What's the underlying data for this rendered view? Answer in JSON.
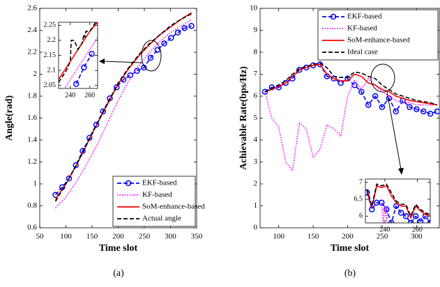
{
  "chart_data": [
    {
      "type": "line",
      "xlabel": "Time slot",
      "ylabel": "Angle(rad)",
      "caption": "(a)",
      "xlim": [
        50,
        350
      ],
      "xticks": [
        50,
        100,
        150,
        200,
        250,
        300,
        350
      ],
      "ylim": [
        0.6,
        2.6
      ],
      "yticks": [
        0.6,
        0.8,
        1,
        1.2,
        1.4,
        1.6,
        1.8,
        2,
        2.2,
        2.4,
        2.6
      ],
      "legend": "lower right",
      "series": [
        {
          "name": "EKF-based",
          "color": "#0000ff",
          "dash": "dashed",
          "marker": "o",
          "x": [
            80,
            93,
            106,
            119,
            132,
            145,
            158,
            171,
            184,
            197,
            210,
            223,
            236,
            249,
            262,
            275,
            288,
            301,
            314,
            327,
            340
          ],
          "values": [
            0.9,
            0.97,
            1.05,
            1.17,
            1.3,
            1.42,
            1.54,
            1.66,
            1.78,
            1.88,
            1.95,
            1.99,
            2.03,
            2.06,
            2.15,
            2.22,
            2.28,
            2.33,
            2.38,
            2.42,
            2.44
          ]
        },
        {
          "name": "KF-based",
          "color": "#ff00ff",
          "dash": "dotted",
          "x": [
            80,
            100,
            120,
            140,
            160,
            180,
            200,
            220,
            240,
            260,
            280,
            300,
            320,
            340
          ],
          "values": [
            0.78,
            0.88,
            1.02,
            1.18,
            1.36,
            1.56,
            1.76,
            1.94,
            2.08,
            2.2,
            2.3,
            2.38,
            2.44,
            2.5
          ]
        },
        {
          "name": "SoM-enhance-based",
          "color": "#ff0000",
          "dash": "solid",
          "x": [
            80,
            100,
            120,
            140,
            160,
            180,
            200,
            220,
            240,
            260,
            280,
            300,
            320,
            340
          ],
          "values": [
            0.86,
            1.0,
            1.17,
            1.36,
            1.55,
            1.73,
            1.91,
            2.05,
            2.17,
            2.27,
            2.36,
            2.43,
            2.5,
            2.56
          ]
        },
        {
          "name": "Actual angle",
          "color": "#000000",
          "dash": "dashed",
          "x": [
            80,
            100,
            120,
            140,
            160,
            180,
            200,
            220,
            240,
            260,
            280,
            300,
            320,
            340
          ],
          "values": [
            0.84,
            1.0,
            1.17,
            1.36,
            1.55,
            1.74,
            1.92,
            2.06,
            2.18,
            2.28,
            2.36,
            2.44,
            2.5,
            2.55
          ]
        }
      ]
    },
    {
      "type": "line",
      "xlim": [
        228,
        268
      ],
      "xticks": [
        240,
        260
      ],
      "ylim": [
        2.04,
        2.26
      ],
      "yticks": [
        2.05,
        2.1,
        2.15,
        2.2,
        2.25
      ],
      "series": [
        {
          "color": "#0000ff",
          "dash": "dashed",
          "marker": "o",
          "x": [
            246,
            254,
            262
          ],
          "values": [
            2.055,
            2.11,
            2.155
          ]
        },
        {
          "color": "#ff00ff",
          "dash": "dotted",
          "x": [
            228,
            236,
            244,
            252,
            260,
            268
          ],
          "values": [
            2.0,
            2.05,
            2.09,
            2.13,
            2.17,
            2.21
          ]
        },
        {
          "color": "#ff0000",
          "dash": "solid",
          "x": [
            228,
            236,
            244,
            252,
            260,
            268
          ],
          "values": [
            2.07,
            2.11,
            2.15,
            2.19,
            2.23,
            2.26
          ]
        },
        {
          "color": "#000000",
          "dash": "dashed",
          "x": [
            228,
            236,
            240,
            241,
            244,
            248,
            252,
            254,
            255,
            256,
            260,
            268
          ],
          "values": [
            2.06,
            2.1,
            2.13,
            2.2,
            2.2,
            2.17,
            2.19,
            2.22,
            2.21,
            2.23,
            2.23,
            2.27
          ]
        }
      ]
    },
    {
      "type": "line",
      "xlabel": "Time slot",
      "ylabel": "Achievable Rate(bps/Hz)",
      "caption": "(b)",
      "xlim": [
        73,
        333
      ],
      "xticks": [
        100,
        150,
        200,
        250,
        300
      ],
      "ylim": [
        0,
        10
      ],
      "yticks": [
        0,
        1,
        2,
        3,
        4,
        5,
        6,
        7,
        8,
        9,
        10
      ],
      "legend": "upper right",
      "series": [
        {
          "name": "EKF-based",
          "color": "#0000ff",
          "dash": "dashed",
          "marker": "o",
          "x": [
            80,
            90,
            100,
            110,
            120,
            130,
            140,
            150,
            160,
            170,
            180,
            190,
            200,
            210,
            220,
            230,
            240,
            250,
            260,
            270,
            280,
            290,
            300,
            310,
            320,
            330
          ],
          "values": [
            6.2,
            6.4,
            6.4,
            6.6,
            6.8,
            7.2,
            7.3,
            7.4,
            7.45,
            6.9,
            6.8,
            6.6,
            6.8,
            6.5,
            6.2,
            5.6,
            6.0,
            5.5,
            5.9,
            5.3,
            5.8,
            5.5,
            5.4,
            5.3,
            5.2,
            5.3
          ]
        },
        {
          "name": "KF-based",
          "color": "#ff00ff",
          "dash": "dotted",
          "x": [
            80,
            90,
            100,
            110,
            120,
            130,
            140,
            150,
            160,
            170,
            180,
            190,
            200,
            210,
            220,
            230,
            240,
            250,
            260,
            270,
            280,
            290,
            300,
            310,
            320,
            330
          ],
          "values": [
            6.2,
            5.0,
            4.6,
            3.0,
            2.6,
            4.8,
            4.5,
            3.2,
            3.6,
            4.7,
            4.5,
            4.2,
            6.0,
            6.7,
            6.3,
            6.8,
            6.5,
            6.2,
            6.0,
            5.8,
            5.7,
            5.7,
            5.6,
            5.6,
            5.6,
            5.6
          ]
        },
        {
          "name": "SoM-enhance-based",
          "color": "#ff0000",
          "dash": "solid",
          "x": [
            80,
            90,
            100,
            110,
            120,
            130,
            140,
            150,
            160,
            170,
            180,
            190,
            200,
            210,
            220,
            230,
            240,
            250,
            260,
            270,
            280,
            290,
            300,
            310,
            320,
            330
          ],
          "values": [
            6.2,
            6.3,
            6.45,
            6.6,
            6.9,
            7.2,
            7.3,
            7.4,
            7.45,
            7.0,
            6.8,
            6.7,
            6.7,
            7.0,
            6.9,
            6.6,
            6.5,
            6.3,
            6.2,
            6.0,
            5.9,
            5.8,
            5.75,
            5.7,
            5.65,
            5.6
          ]
        },
        {
          "name": "Ideal case",
          "color": "#000000",
          "dash": "dashed",
          "x": [
            80,
            90,
            100,
            110,
            120,
            130,
            140,
            150,
            160,
            170,
            180,
            190,
            200,
            210,
            220,
            230,
            240,
            250,
            260,
            270,
            280,
            290,
            300,
            310,
            320,
            330
          ],
          "values": [
            6.2,
            6.35,
            6.5,
            6.7,
            7.0,
            7.25,
            7.35,
            7.45,
            7.5,
            7.3,
            6.9,
            6.85,
            6.85,
            7.1,
            7.05,
            6.9,
            6.8,
            6.5,
            6.3,
            6.1,
            6.0,
            5.9,
            5.8,
            5.75,
            5.7,
            5.6
          ]
        }
      ]
    },
    {
      "type": "line",
      "xlim": [
        228,
        268
      ],
      "xticks": [
        240,
        260
      ],
      "ylim": [
        5.8,
        7.1
      ],
      "yticks": [
        6,
        6.5,
        7
      ],
      "series": [
        {
          "color": "#0000ff",
          "dash": "dashed",
          "marker": "o",
          "x": [
            229,
            232,
            235,
            238,
            241,
            244,
            247,
            250,
            253,
            256,
            259,
            262,
            265,
            268
          ],
          "values": [
            6.7,
            6.2,
            6.4,
            6.4,
            6.2,
            5.8,
            6.3,
            6.1,
            6.0,
            5.8,
            6.0,
            5.85,
            6.0,
            5.8
          ]
        },
        {
          "color": "#ff00ff",
          "dash": "dotted",
          "x": [
            238,
            239,
            240,
            241,
            242
          ],
          "values": [
            6.4,
            5.8,
            6.3,
            5.8,
            6.3
          ]
        },
        {
          "color": "#ff0000",
          "dash": "solid",
          "x": [
            229,
            232,
            235,
            238,
            241,
            244,
            247,
            250,
            253,
            256,
            259,
            262,
            265,
            268
          ],
          "values": [
            6.75,
            6.25,
            6.9,
            6.85,
            6.9,
            6.6,
            6.4,
            6.3,
            6.3,
            5.95,
            6.3,
            6.15,
            6.05,
            6.0
          ]
        },
        {
          "color": "#000000",
          "dash": "dashed",
          "x": [
            229,
            232,
            235,
            238,
            241,
            244,
            247,
            250,
            253,
            256,
            259,
            262,
            265,
            268
          ],
          "values": [
            6.8,
            6.3,
            6.95,
            6.9,
            6.95,
            6.7,
            6.45,
            6.35,
            6.35,
            6.0,
            6.35,
            6.2,
            6.1,
            6.05
          ]
        }
      ]
    }
  ]
}
